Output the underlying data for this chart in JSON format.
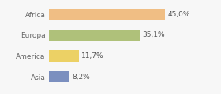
{
  "categories": [
    "Africa",
    "Europa",
    "America",
    "Asia"
  ],
  "values": [
    45.0,
    35.1,
    11.7,
    8.2
  ],
  "labels": [
    "45,0%",
    "35,1%",
    "11,7%",
    "8,2%"
  ],
  "bar_colors": [
    "#f0be84",
    "#afc17a",
    "#ecd165",
    "#7b8fbf"
  ],
  "background_color": "#f7f7f7",
  "xlim": [
    0,
    65
  ],
  "label_fontsize": 6.5,
  "tick_fontsize": 6.5,
  "bar_height": 0.55
}
